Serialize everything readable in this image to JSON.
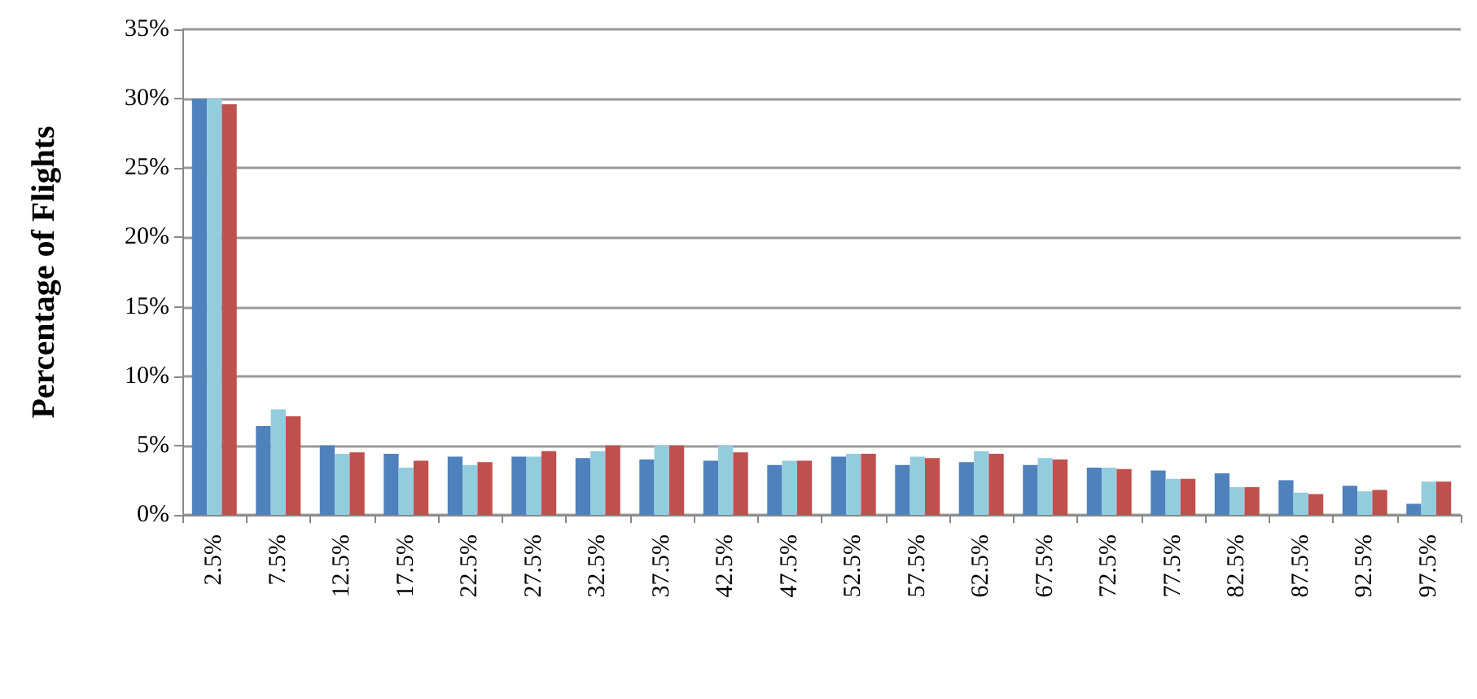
{
  "chart_data": {
    "type": "bar",
    "ylabel": "Percentage of Flights",
    "categories": [
      "2.5%",
      "7.5%",
      "12.5%",
      "17.5%",
      "22.5%",
      "27.5%",
      "32.5%",
      "37.5%",
      "42.5%",
      "47.5%",
      "52.5%",
      "57.5%",
      "62.5%",
      "67.5%",
      "72.5%",
      "77.5%",
      "82.5%",
      "87.5%",
      "92.5%",
      "97.5%"
    ],
    "series": [
      {
        "color": "#4f81bd",
        "values": [
          30,
          6.4,
          5.0,
          4.4,
          4.2,
          4.2,
          4.1,
          4.0,
          3.9,
          3.6,
          4.2,
          3.6,
          3.8,
          3.6,
          3.4,
          3.2,
          3.0,
          2.5,
          2.1,
          0.8
        ]
      },
      {
        "color": "#93cddd",
        "values": [
          30,
          7.6,
          4.4,
          3.4,
          3.6,
          4.2,
          4.6,
          5.0,
          5.0,
          3.9,
          4.4,
          4.2,
          4.6,
          4.1,
          3.4,
          2.6,
          2.0,
          1.6,
          1.7,
          2.4
        ]
      },
      {
        "color": "#c0504d",
        "values": [
          29.6,
          7.1,
          4.5,
          3.9,
          3.8,
          4.6,
          5.0,
          5.0,
          4.5,
          3.9,
          4.4,
          4.1,
          4.4,
          4.0,
          3.3,
          2.6,
          2.0,
          1.5,
          1.8,
          2.4
        ]
      }
    ],
    "ylim": [
      0,
      35
    ],
    "yticks": [
      {
        "value": 0,
        "label": "0%"
      },
      {
        "value": 5,
        "label": "5%"
      },
      {
        "value": 10,
        "label": "10%"
      },
      {
        "value": 15,
        "label": "15%"
      },
      {
        "value": 20,
        "label": "20%"
      },
      {
        "value": 25,
        "label": "25%"
      },
      {
        "value": 30,
        "label": "30%"
      },
      {
        "value": 35,
        "label": "35%"
      }
    ],
    "grid": "y"
  }
}
